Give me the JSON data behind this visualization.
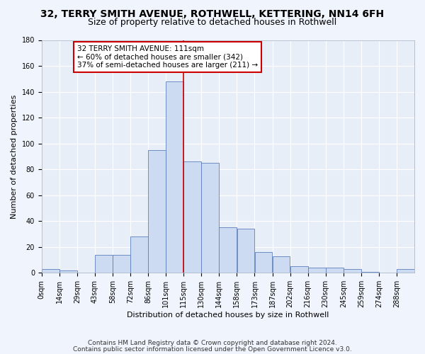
{
  "title1": "32, TERRY SMITH AVENUE, ROTHWELL, KETTERING, NN14 6FH",
  "title2": "Size of property relative to detached houses in Rothwell",
  "xlabel": "Distribution of detached houses by size in Rothwell",
  "ylabel": "Number of detached properties",
  "bar_labels": [
    "0sqm",
    "14sqm",
    "29sqm",
    "43sqm",
    "58sqm",
    "72sqm",
    "86sqm",
    "101sqm",
    "115sqm",
    "130sqm",
    "144sqm",
    "158sqm",
    "173sqm",
    "187sqm",
    "202sqm",
    "216sqm",
    "230sqm",
    "245sqm",
    "259sqm",
    "274sqm",
    "288sqm"
  ],
  "bar_heights": [
    3,
    2,
    0,
    14,
    14,
    28,
    95,
    148,
    86,
    85,
    35,
    34,
    16,
    13,
    5,
    4,
    4,
    3,
    1,
    0,
    3
  ],
  "bar_color": "#ccdaf2",
  "bar_edge_color": "#5b7fbd",
  "annotation_text": "32 TERRY SMITH AVENUE: 111sqm\n← 60% of detached houses are smaller (342)\n37% of semi-detached houses are larger (211) →",
  "annotation_box_color": "#ffffff",
  "annotation_box_edge_color": "#cc0000",
  "vline_color": "#cc0000",
  "ylim": [
    0,
    180
  ],
  "yticks": [
    0,
    20,
    40,
    60,
    80,
    100,
    120,
    140,
    160,
    180
  ],
  "footer1": "Contains HM Land Registry data © Crown copyright and database right 2024.",
  "footer2": "Contains public sector information licensed under the Open Government Licence v3.0.",
  "background_color": "#f0f4fc",
  "plot_bg_color": "#e8eef8",
  "grid_color": "#ffffff",
  "title1_fontsize": 10,
  "title2_fontsize": 9,
  "axis_label_fontsize": 8,
  "tick_fontsize": 7,
  "footer_fontsize": 6.5,
  "annotation_fontsize": 7.5,
  "bin_size": 14.5
}
